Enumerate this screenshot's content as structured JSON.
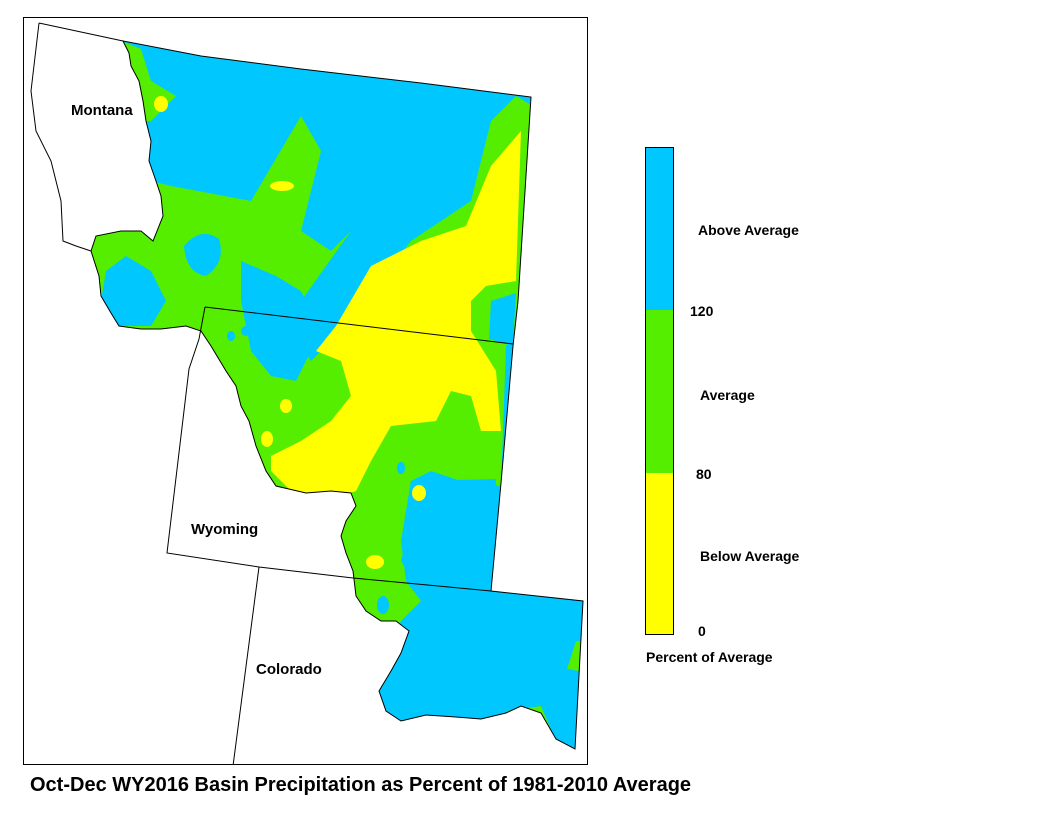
{
  "colors": {
    "above": "#00c8ff",
    "average": "#55ee00",
    "below": "#ffff00",
    "border": "#000000"
  },
  "map": {
    "states": [
      {
        "name": "Montana"
      },
      {
        "name": "Wyoming"
      },
      {
        "name": "Colorado"
      }
    ]
  },
  "legend": {
    "categories": [
      {
        "label": "Above Average",
        "range": "120+",
        "color": "#00c8ff"
      },
      {
        "label": "Average",
        "range": "80-120",
        "color": "#55ee00"
      },
      {
        "label": "Below Average",
        "range": "0-80",
        "color": "#ffff00"
      }
    ],
    "ticks": [
      "120",
      "80",
      "0"
    ],
    "title": "Percent of Average"
  },
  "caption": "Oct-Dec WY2016 Basin Precipitation as Percent of 1981-2010 Average"
}
